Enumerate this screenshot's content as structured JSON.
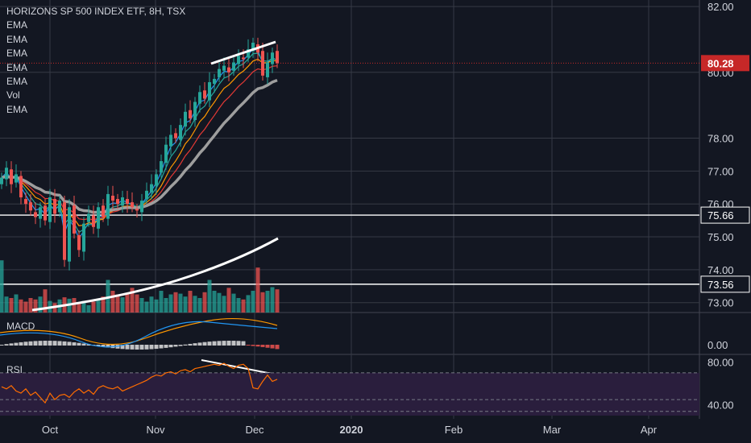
{
  "header": {
    "title": "HORIZONS SP 500 INDEX ETF, 8H, TSX",
    "indicators": [
      "EMA",
      "EMA",
      "EMA",
      "EMA",
      "EMA",
      "Vol",
      "EMA"
    ]
  },
  "panes": {
    "macd_label": "MACD",
    "rsi_label": "RSI"
  },
  "colors": {
    "background": "#131722",
    "grid": "#363a45",
    "up": "#26a69a",
    "down": "#ef5350",
    "price_badge": "#c62828",
    "ema_fast": "#2196f3",
    "ema_mid": "#26a69a",
    "ema_slow1": "#ff9800",
    "ema_slow2": "#e53935",
    "ema_long": "#9e9e9e",
    "rsi_line": "#ff6d00",
    "rsi_band": "#2a1e3d"
  },
  "chart_data": {
    "type": "candlestick",
    "y_axis_ticks": [
      "82.00",
      "80.00",
      "78.00",
      "77.00",
      "76.00",
      "75.00",
      "74.00",
      "73.00"
    ],
    "price_ylim": [
      72.7,
      82.1
    ],
    "x_axis_ticks": [
      "Oct",
      "Nov",
      "Dec",
      "2020",
      "Feb",
      "Mar",
      "Apr"
    ],
    "last_price": "80.28",
    "horizontal_levels": [
      "75.66",
      "73.56"
    ],
    "macd_ticks": [
      "0.00"
    ],
    "rsi_ticks": [
      "80.00",
      "40.00"
    ],
    "rsi_ylim": [
      30,
      85
    ],
    "rsi_band": [
      30,
      70
    ],
    "closes": [
      76.8,
      77.1,
      76.6,
      76.9,
      76.2,
      76.0,
      75.8,
      75.6,
      75.9,
      75.5,
      76.2,
      75.7,
      76.1,
      74.3,
      75.9,
      75.1,
      74.6,
      75.4,
      75.7,
      75.3,
      75.9,
      75.6,
      76.3,
      76.1,
      76.0,
      76.2,
      76.0,
      75.9,
      75.8,
      76.1,
      76.4,
      76.6,
      76.9,
      77.3,
      77.8,
      78.1,
      78.0,
      78.4,
      78.8,
      78.6,
      79.1,
      79.4,
      79.2,
      79.7,
      79.8,
      80.1,
      80.2,
      80.0,
      80.3,
      80.5,
      80.4,
      80.7,
      80.9,
      80.6,
      79.9,
      80.3,
      80.6,
      80.28
    ],
    "rsi": [
      57,
      55,
      58,
      53,
      51,
      55,
      49,
      52,
      47,
      42,
      51,
      45,
      49,
      50,
      47,
      52,
      55,
      51,
      54,
      50,
      56,
      58,
      56,
      55,
      57,
      53,
      55,
      57,
      59,
      61,
      63,
      66,
      68,
      67,
      70,
      71,
      69,
      72,
      73,
      71,
      74,
      75,
      76,
      77,
      78,
      77,
      79,
      76,
      74,
      77,
      78,
      74,
      56,
      55,
      62,
      68,
      62,
      64
    ],
    "volume": [
      0.72,
      0.22,
      0.2,
      0.25,
      0.18,
      0.15,
      0.2,
      0.18,
      0.22,
      0.32,
      0.16,
      0.13,
      0.18,
      0.21,
      0.19,
      0.2,
      0.12,
      0.16,
      0.1,
      0.15,
      0.18,
      0.22,
      0.45,
      0.3,
      0.25,
      0.21,
      0.27,
      0.34,
      0.25,
      0.2,
      0.15,
      0.22,
      0.18,
      0.3,
      0.2,
      0.25,
      0.28,
      0.26,
      0.22,
      0.3,
      0.23,
      0.2,
      0.28,
      0.45,
      0.3,
      0.27,
      0.23,
      0.34,
      0.26,
      0.2,
      0.18,
      0.24,
      0.3,
      0.62,
      0.28,
      0.3,
      0.35,
      0.32
    ]
  }
}
